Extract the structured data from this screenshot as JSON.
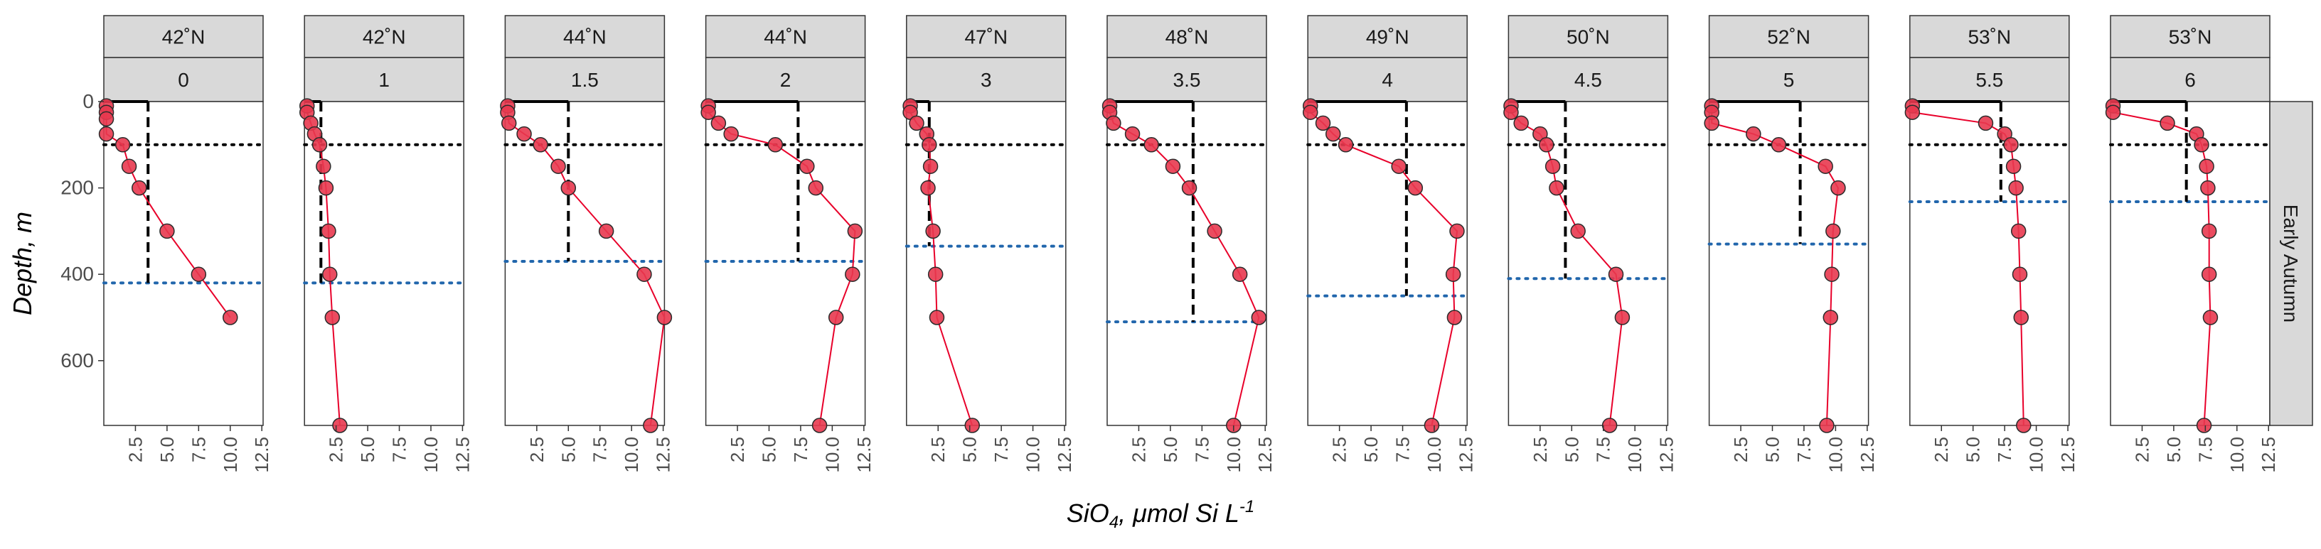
{
  "colors": {
    "point_fill": "#e8394f",
    "line": "#e8002a",
    "dashed_ref": "#000000",
    "dotted_ref": "#000000",
    "blue_dotted": "#2166ac",
    "strip_bg": "#d9d9d9"
  },
  "chart_data": {
    "type": "line",
    "xlabel_main": "SiO",
    "xlabel_sub": "4",
    "xlabel_rest": ", μmol Si L",
    "xlabel_sup": "-1",
    "ylabel": "Depth, m",
    "row_strip": "Early Autumn",
    "xlim": [
      0,
      12.6
    ],
    "ylim": [
      0,
      750
    ],
    "y_reversed": true,
    "x_ticks": [
      "2.5",
      "5.0",
      "7.5",
      "10.0",
      "12.5"
    ],
    "x_tick_values": [
      2.5,
      5.0,
      7.5,
      10.0,
      12.5
    ],
    "y_ticks": [
      "0",
      "200",
      "400",
      "600"
    ],
    "y_tick_values": [
      0,
      200,
      400,
      600
    ],
    "dotted_depth": 100,
    "panels": [
      {
        "lat": "42˚N",
        "station": "0",
        "dashed_x": 3.5,
        "blue_depth": 420,
        "points": [
          [
            0.2,
            10
          ],
          [
            0.2,
            25
          ],
          [
            0.2,
            40
          ],
          [
            0.2,
            75
          ],
          [
            1.5,
            100
          ],
          [
            2.0,
            150
          ],
          [
            2.8,
            200
          ],
          [
            5.0,
            300
          ],
          [
            7.5,
            400
          ],
          [
            10.0,
            500
          ]
        ]
      },
      {
        "lat": "42˚N",
        "station": "1",
        "dashed_x": 1.3,
        "blue_depth": 420,
        "points": [
          [
            0.2,
            10
          ],
          [
            0.2,
            25
          ],
          [
            0.5,
            50
          ],
          [
            0.8,
            75
          ],
          [
            1.2,
            100
          ],
          [
            1.5,
            150
          ],
          [
            1.7,
            200
          ],
          [
            1.9,
            300
          ],
          [
            2.0,
            400
          ],
          [
            2.2,
            500
          ],
          [
            2.8,
            750
          ]
        ]
      },
      {
        "lat": "44˚N",
        "station": "1.5",
        "dashed_x": 5.0,
        "blue_depth": 370,
        "points": [
          [
            0.2,
            10
          ],
          [
            0.2,
            25
          ],
          [
            0.3,
            50
          ],
          [
            1.5,
            75
          ],
          [
            2.8,
            100
          ],
          [
            4.2,
            150
          ],
          [
            5.0,
            200
          ],
          [
            8.0,
            300
          ],
          [
            11.0,
            400
          ],
          [
            12.6,
            500
          ],
          [
            11.5,
            750
          ]
        ]
      },
      {
        "lat": "44˚N",
        "station": "2",
        "dashed_x": 7.3,
        "blue_depth": 370,
        "points": [
          [
            0.2,
            10
          ],
          [
            0.2,
            25
          ],
          [
            1.0,
            50
          ],
          [
            2.0,
            75
          ],
          [
            5.5,
            100
          ],
          [
            8.0,
            150
          ],
          [
            8.7,
            200
          ],
          [
            11.8,
            300
          ],
          [
            11.6,
            400
          ],
          [
            10.3,
            500
          ],
          [
            9.0,
            750
          ]
        ]
      },
      {
        "lat": "47˚N",
        "station": "3",
        "dashed_x": 1.8,
        "blue_depth": 335,
        "points": [
          [
            0.3,
            10
          ],
          [
            0.3,
            25
          ],
          [
            0.8,
            50
          ],
          [
            1.6,
            75
          ],
          [
            1.8,
            100
          ],
          [
            1.9,
            150
          ],
          [
            1.7,
            200
          ],
          [
            2.1,
            300
          ],
          [
            2.3,
            400
          ],
          [
            2.4,
            500
          ],
          [
            5.2,
            750
          ]
        ]
      },
      {
        "lat": "48˚N",
        "station": "3.5",
        "dashed_x": 6.8,
        "blue_depth": 510,
        "points": [
          [
            0.2,
            10
          ],
          [
            0.2,
            25
          ],
          [
            0.5,
            50
          ],
          [
            2.0,
            75
          ],
          [
            3.5,
            100
          ],
          [
            5.2,
            150
          ],
          [
            6.5,
            200
          ],
          [
            8.5,
            300
          ],
          [
            10.5,
            400
          ],
          [
            12.0,
            500
          ],
          [
            10.0,
            750
          ]
        ]
      },
      {
        "lat": "49˚N",
        "station": "4",
        "dashed_x": 7.8,
        "blue_depth": 450,
        "points": [
          [
            0.2,
            10
          ],
          [
            0.2,
            25
          ],
          [
            1.2,
            50
          ],
          [
            2.0,
            75
          ],
          [
            3.0,
            100
          ],
          [
            7.2,
            150
          ],
          [
            8.5,
            200
          ],
          [
            11.8,
            300
          ],
          [
            11.5,
            400
          ],
          [
            11.6,
            500
          ],
          [
            9.8,
            750
          ]
        ]
      },
      {
        "lat": "50˚N",
        "station": "4.5",
        "dashed_x": 4.5,
        "blue_depth": 410,
        "points": [
          [
            0.2,
            10
          ],
          [
            0.2,
            25
          ],
          [
            1.0,
            50
          ],
          [
            2.5,
            75
          ],
          [
            3.0,
            100
          ],
          [
            3.5,
            150
          ],
          [
            3.8,
            200
          ],
          [
            5.5,
            300
          ],
          [
            8.5,
            400
          ],
          [
            9.0,
            500
          ],
          [
            8.0,
            750
          ]
        ]
      },
      {
        "lat": "52˚N",
        "station": "5",
        "dashed_x": 7.2,
        "blue_depth": 330,
        "points": [
          [
            0.2,
            10
          ],
          [
            0.2,
            25
          ],
          [
            0.2,
            50
          ],
          [
            3.5,
            75
          ],
          [
            5.5,
            100
          ],
          [
            9.2,
            150
          ],
          [
            10.2,
            200
          ],
          [
            9.8,
            300
          ],
          [
            9.7,
            400
          ],
          [
            9.6,
            500
          ],
          [
            9.3,
            750
          ]
        ]
      },
      {
        "lat": "53˚N",
        "station": "5.5",
        "dashed_x": 7.2,
        "blue_depth": 232,
        "points": [
          [
            0.2,
            10
          ],
          [
            0.2,
            25
          ],
          [
            6.0,
            50
          ],
          [
            7.5,
            75
          ],
          [
            8.0,
            100
          ],
          [
            8.2,
            150
          ],
          [
            8.4,
            200
          ],
          [
            8.6,
            300
          ],
          [
            8.7,
            400
          ],
          [
            8.8,
            500
          ],
          [
            9.0,
            750
          ]
        ]
      },
      {
        "lat": "53˚N",
        "station": "6",
        "dashed_x": 6.0,
        "blue_depth": 232,
        "points": [
          [
            0.2,
            10
          ],
          [
            0.2,
            25
          ],
          [
            4.5,
            50
          ],
          [
            6.8,
            75
          ],
          [
            7.2,
            100
          ],
          [
            7.6,
            150
          ],
          [
            7.7,
            200
          ],
          [
            7.8,
            300
          ],
          [
            7.8,
            400
          ],
          [
            7.9,
            500
          ],
          [
            7.4,
            750
          ]
        ]
      }
    ]
  }
}
